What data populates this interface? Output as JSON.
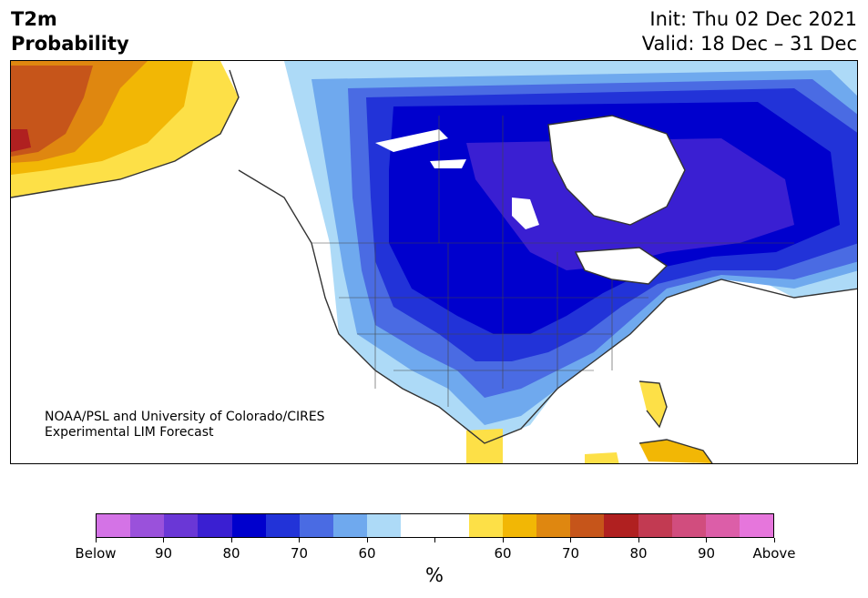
{
  "header": {
    "title_line1": "T2m",
    "title_line2": "Probability",
    "init": "Init: Thu 02 Dec 2021",
    "valid": "Valid: 18 Dec – 31 Dec"
  },
  "credit": {
    "line1": "NOAA/PSL and University of Colorado/CIRES",
    "line2": "Experimental LIM Forecast"
  },
  "colorbar": {
    "colors": [
      "#d473e6",
      "#9a51db",
      "#6a37d6",
      "#3a1fd2",
      "#0000cd",
      "#2233d8",
      "#4a6be3",
      "#6fa9ee",
      "#addaf7",
      "#ffffff",
      "#ffffff",
      "#fde047",
      "#f2b705",
      "#df8710",
      "#c6551a",
      "#b02020",
      "#c23a52",
      "#d14d7e",
      "#dc5ea8",
      "#e676dc"
    ],
    "labels": [
      "Below",
      "90",
      "80",
      "70",
      "60",
      "60",
      "70",
      "80",
      "90",
      "Above"
    ],
    "unit": "%"
  }
}
